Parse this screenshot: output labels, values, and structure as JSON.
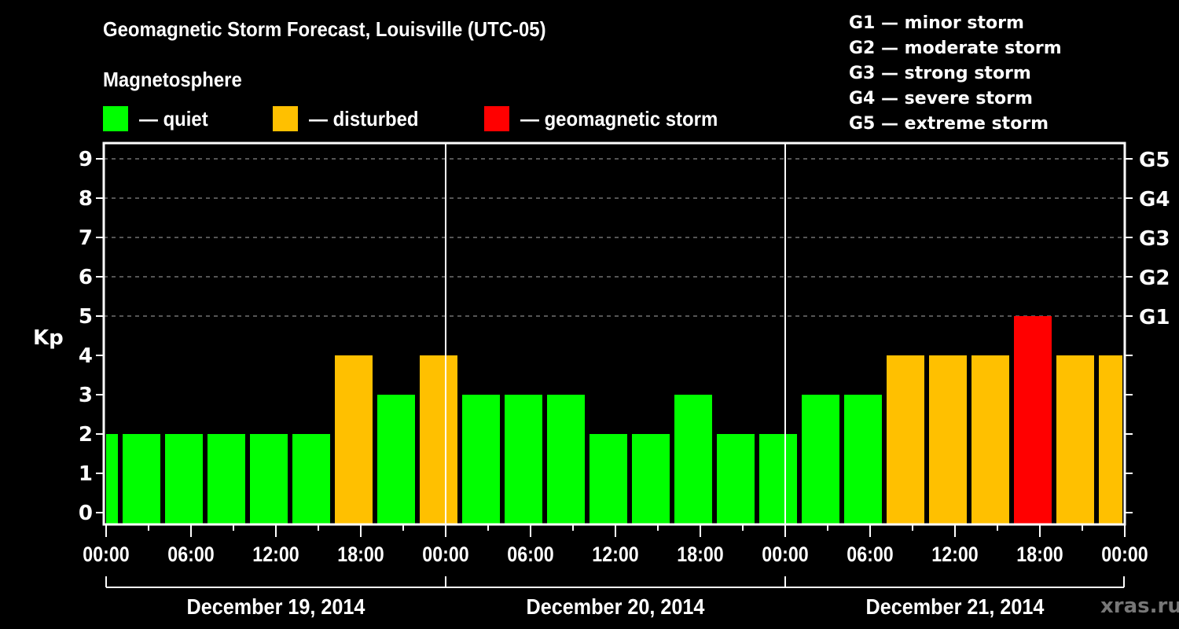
{
  "title": "Geomagnetic Storm Forecast, Louisville (UTC-05)",
  "subtitle": "Magnetosphere",
  "legend": [
    {
      "label": "— quiet",
      "color": "#00ff00"
    },
    {
      "label": "— disturbed",
      "color": "#ffc000"
    },
    {
      "label": "— geomagnetic storm",
      "color": "#ff0000"
    }
  ],
  "g_scale": [
    "G1 — minor storm",
    "G2 — moderate storm",
    "G3 — strong storm",
    "G4 — severe storm",
    "G5 — extreme storm"
  ],
  "watermark": "xras.ru",
  "chart_data": {
    "type": "bar",
    "title": "Geomagnetic Storm Forecast, Louisville (UTC-05)",
    "xlabel": "",
    "ylabel": "Kp",
    "ylim": [
      0,
      9
    ],
    "yticks": [
      0,
      1,
      2,
      3,
      4,
      5,
      6,
      7,
      8,
      9
    ],
    "right_axis_labels": [
      {
        "kp": 5,
        "label": "G1"
      },
      {
        "kp": 6,
        "label": "G2"
      },
      {
        "kp": 7,
        "label": "G3"
      },
      {
        "kp": 8,
        "label": "G4"
      },
      {
        "kp": 9,
        "label": "G5"
      }
    ],
    "xtick_labels": [
      "00:00",
      "06:00",
      "12:00",
      "18:00",
      "00:00",
      "06:00",
      "12:00",
      "18:00",
      "00:00",
      "06:00",
      "12:00",
      "18:00",
      "00:00"
    ],
    "dates": [
      "December 19, 2014",
      "December 20, 2014",
      "December 21, 2014"
    ],
    "grid": "dashed horizontal at Kp 5-9",
    "colors": {
      "quiet": "#00ff00",
      "disturbed": "#ffc000",
      "storm": "#ff0000"
    },
    "values": [
      2,
      2,
      2,
      2,
      2,
      2,
      4,
      3,
      4,
      3,
      3,
      3,
      2,
      2,
      3,
      2,
      2,
      3,
      3,
      4,
      4,
      4,
      5,
      4,
      4
    ],
    "status": [
      "quiet",
      "quiet",
      "quiet",
      "quiet",
      "quiet",
      "quiet",
      "disturbed",
      "quiet",
      "disturbed",
      "quiet",
      "quiet",
      "quiet",
      "quiet",
      "quiet",
      "quiet",
      "quiet",
      "quiet",
      "quiet",
      "quiet",
      "disturbed",
      "disturbed",
      "disturbed",
      "storm",
      "disturbed",
      "disturbed"
    ]
  }
}
